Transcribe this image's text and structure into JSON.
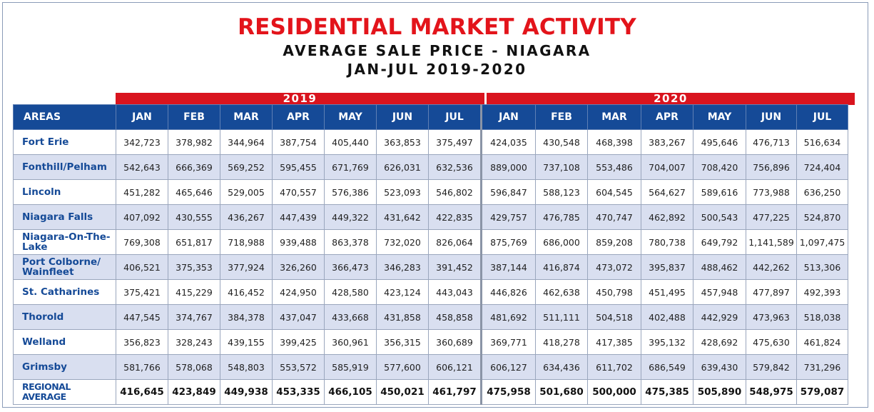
{
  "header": {
    "title": "RESIDENTIAL MARKET ACTIVITY",
    "subtitle": "AVERAGE SALE PRICE - NIAGARA",
    "period": "JAN-JUL 2019-2020"
  },
  "years": [
    "2019",
    "2020"
  ],
  "columns": {
    "area_label": "AREAS",
    "months_2019": [
      "JAN",
      "FEB",
      "MAR",
      "APR",
      "MAY",
      "JUN",
      "JUL"
    ],
    "months_2020": [
      "JAN",
      "FEB",
      "MAR",
      "APR",
      "MAY",
      "JUN",
      "JUL"
    ]
  },
  "rows": [
    {
      "area": "Fort Erie",
      "v2019": [
        "342,723",
        "378,982",
        "344,964",
        "387,754",
        "405,440",
        "363,853",
        "375,497"
      ],
      "v2020": [
        "424,035",
        "430,548",
        "468,398",
        "383,267",
        "495,646",
        "476,713",
        "516,634"
      ]
    },
    {
      "area": "Fonthill/Pelham",
      "v2019": [
        "542,643",
        "666,369",
        "569,252",
        "595,455",
        "671,769",
        "626,031",
        "632,536"
      ],
      "v2020": [
        "889,000",
        "737,108",
        "553,486",
        "704,007",
        "708,420",
        "756,896",
        "724,404"
      ]
    },
    {
      "area": "Lincoln",
      "v2019": [
        "451,282",
        "465,646",
        "529,005",
        "470,557",
        "576,386",
        "523,093",
        "546,802"
      ],
      "v2020": [
        "596,847",
        "588,123",
        "604,545",
        "564,627",
        "589,616",
        "773,988",
        "636,250"
      ]
    },
    {
      "area": "Niagara Falls",
      "v2019": [
        "407,092",
        "430,555",
        "436,267",
        "447,439",
        "449,322",
        "431,642",
        "422,835"
      ],
      "v2020": [
        "429,757",
        "476,785",
        "470,747",
        "462,892",
        "500,543",
        "477,225",
        "524,870"
      ]
    },
    {
      "area": "Niagara-On-The-Lake",
      "v2019": [
        "769,308",
        "651,817",
        "718,988",
        "939,488",
        "863,378",
        "732,020",
        "826,064"
      ],
      "v2020": [
        "875,769",
        "686,000",
        "859,208",
        "780,738",
        "649,792",
        "1,141,589",
        "1,097,475"
      ]
    },
    {
      "area": "Port Colborne/ Wainfleet",
      "v2019": [
        "406,521",
        "375,353",
        "377,924",
        "326,260",
        "366,473",
        "346,283",
        "391,452"
      ],
      "v2020": [
        "387,144",
        "416,874",
        "473,072",
        "395,837",
        "488,462",
        "442,262",
        "513,306"
      ]
    },
    {
      "area": "St. Catharines",
      "v2019": [
        "375,421",
        "415,229",
        "416,452",
        "424,950",
        "428,580",
        "423,124",
        "443,043"
      ],
      "v2020": [
        "446,826",
        "462,638",
        "450,798",
        "451,495",
        "457,948",
        "477,897",
        "492,393"
      ]
    },
    {
      "area": "Thorold",
      "v2019": [
        "447,545",
        "374,767",
        "384,378",
        "437,047",
        "433,668",
        "431,858",
        "458,858"
      ],
      "v2020": [
        "481,692",
        "511,111",
        "504,518",
        "402,488",
        "442,929",
        "473,963",
        "518,038"
      ]
    },
    {
      "area": "Welland",
      "v2019": [
        "356,823",
        "328,243",
        "439,155",
        "399,425",
        "360,961",
        "356,315",
        "360,689"
      ],
      "v2020": [
        "369,771",
        "418,278",
        "417,385",
        "395,132",
        "428,692",
        "475,630",
        "461,824"
      ]
    },
    {
      "area": "Grimsby",
      "v2019": [
        "581,766",
        "578,068",
        "548,803",
        "553,572",
        "585,919",
        "577,600",
        "606,121"
      ],
      "v2020": [
        "606,127",
        "634,436",
        "611,702",
        "686,549",
        "639,430",
        "579,842",
        "731,296"
      ]
    }
  ],
  "regional_average": {
    "label": "REGIONAL AVERAGE",
    "v2019": [
      "416,645",
      "423,849",
      "449,938",
      "453,335",
      "466,105",
      "450,021",
      "461,797"
    ],
    "v2020": [
      "475,958",
      "501,680",
      "500,000",
      "475,385",
      "505,890",
      "548,975",
      "579,087"
    ]
  },
  "colors": {
    "title_red": "#e3141b",
    "header_blue": "#154a97",
    "alt_row": "#d9dff0",
    "year_bar_red": "#d9141e"
  }
}
